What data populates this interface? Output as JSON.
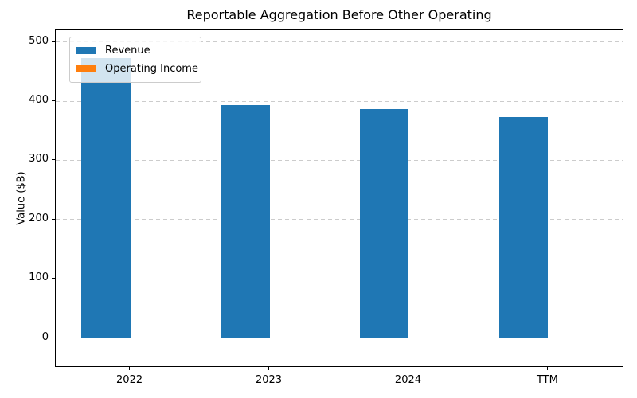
{
  "chart_data": {
    "type": "bar",
    "title": "Reportable Aggregation Before Other Operating",
    "xlabel": "",
    "ylabel": "Value ($B)",
    "categories": [
      "2022",
      "2023",
      "2024",
      "TTM"
    ],
    "series": [
      {
        "name": "Revenue",
        "color": "#1f77b4",
        "values": [
          472,
          394,
          387,
          373
        ]
      },
      {
        "name": "Operating Income",
        "color": "#ff7f0e",
        "values": [
          0,
          0,
          0,
          0
        ]
      }
    ],
    "yticks": [
      0,
      100,
      200,
      300,
      400,
      500
    ],
    "ylim": [
      -47.2,
      519.6
    ],
    "xlim": [
      -0.535,
      3.535
    ],
    "bar_width": 0.35,
    "grid": "horizontal dashed",
    "legend_position": "upper left",
    "colors": {
      "revenue": "#1f77b4",
      "operating_income": "#ff7f0e",
      "gridline": "#cccccc",
      "spine": "#000000",
      "text": "#000000"
    }
  }
}
